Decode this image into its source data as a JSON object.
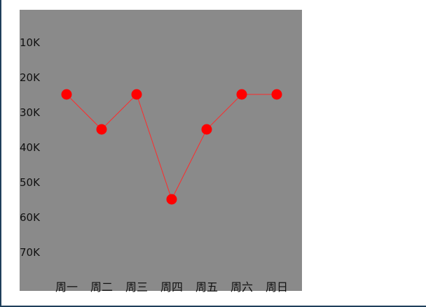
{
  "chart_data": {
    "type": "line",
    "categories": [
      "周一",
      "周二",
      "周三",
      "周四",
      "周五",
      "周六",
      "周日"
    ],
    "series": [
      {
        "values": [
          25000,
          35000,
          25000,
          55000,
          35000,
          25000,
          25000
        ]
      }
    ],
    "y_ticks": [
      "10K",
      "20K",
      "30K",
      "40K",
      "50K",
      "60K",
      "70K"
    ],
    "y_tick_values": [
      10000,
      20000,
      30000,
      40000,
      50000,
      60000,
      70000
    ],
    "y_inverted": true,
    "ylim": [
      0,
      80000
    ],
    "title": "",
    "xlabel": "",
    "ylabel": "",
    "grid": false,
    "legend": "none",
    "colors": {
      "plot_background": "#8a8a8a",
      "line": "#ff2a2a",
      "marker": "#ff0000",
      "text": "#111111"
    }
  }
}
